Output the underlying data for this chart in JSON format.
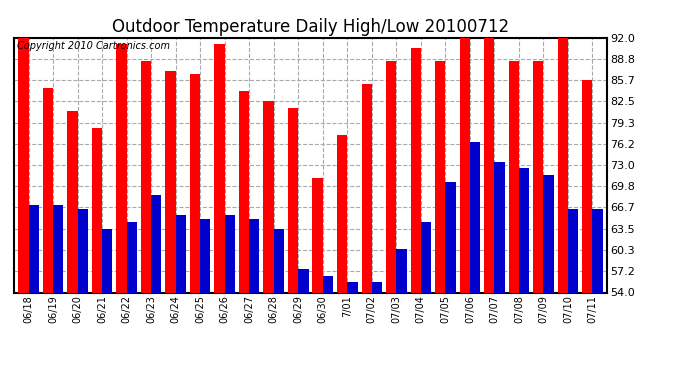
{
  "title": "Outdoor Temperature Daily High/Low 20100712",
  "copyright": "Copyright 2010 Cartronics.com",
  "dates": [
    "06/18",
    "06/19",
    "06/20",
    "06/21",
    "06/22",
    "06/23",
    "06/24",
    "06/25",
    "06/26",
    "06/27",
    "06/28",
    "06/29",
    "06/30",
    "7/01",
    "07/02",
    "07/03",
    "07/04",
    "07/05",
    "07/06",
    "07/07",
    "07/08",
    "07/09",
    "07/10",
    "07/11"
  ],
  "highs": [
    92.0,
    84.5,
    81.0,
    78.5,
    91.0,
    88.5,
    87.0,
    86.5,
    91.0,
    84.0,
    82.5,
    81.5,
    71.0,
    77.5,
    85.0,
    88.5,
    90.5,
    88.5,
    92.0,
    92.0,
    88.5,
    88.5,
    92.0,
    85.7
  ],
  "lows": [
    67.0,
    67.0,
    66.5,
    63.5,
    64.5,
    68.5,
    65.5,
    65.0,
    65.5,
    65.0,
    63.5,
    57.5,
    56.5,
    55.5,
    55.5,
    60.5,
    64.5,
    70.5,
    76.5,
    73.5,
    72.5,
    71.5,
    66.5,
    66.5
  ],
  "high_color": "#ff0000",
  "low_color": "#0000cc",
  "bg_color": "#ffffff",
  "grid_color": "#aaaaaa",
  "ymin": 54.0,
  "ymax": 92.0,
  "yticks": [
    54.0,
    57.2,
    60.3,
    63.5,
    66.7,
    69.8,
    73.0,
    76.2,
    79.3,
    82.5,
    85.7,
    88.8,
    92.0
  ],
  "title_fontsize": 12,
  "copyright_fontsize": 7,
  "bar_width": 0.42,
  "figwidth": 6.9,
  "figheight": 3.75,
  "dpi": 100
}
